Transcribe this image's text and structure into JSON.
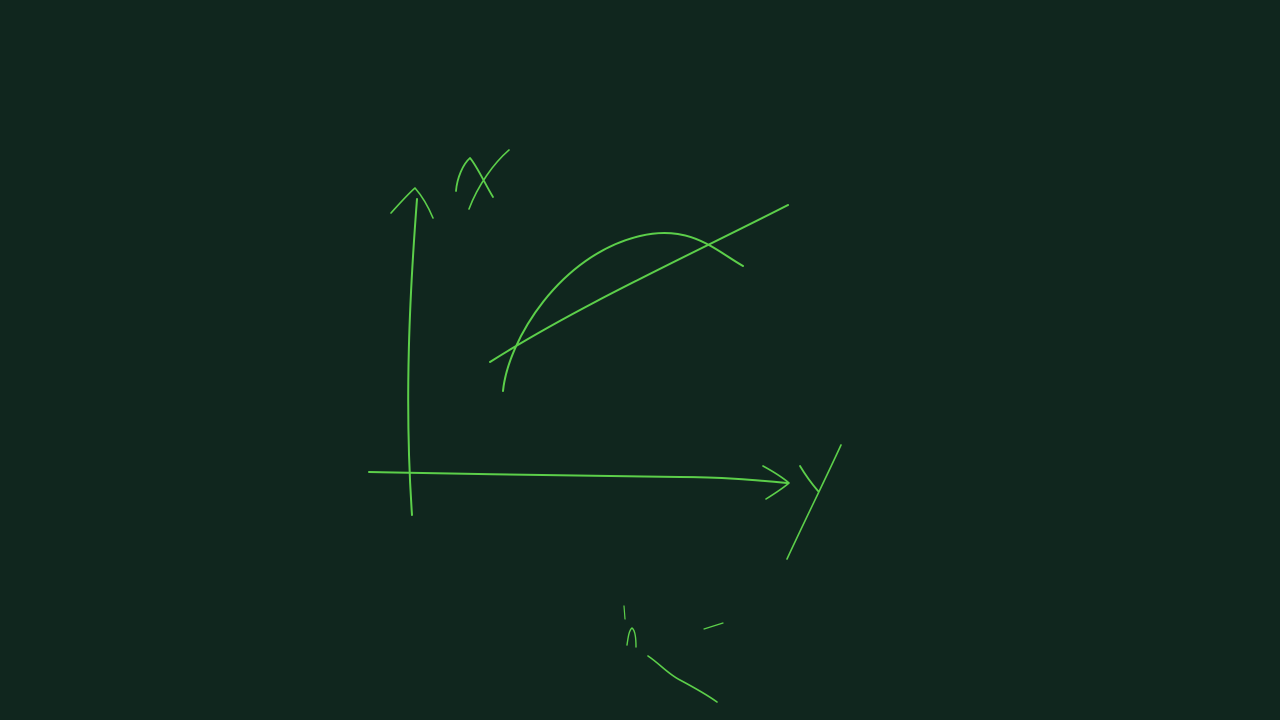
{
  "canvas": {
    "background": "#10261e",
    "ink_color": "#5ccf4a"
  },
  "sketch": {
    "vertical_axis_label": "x",
    "horizontal_axis_label": "y",
    "bottom_mark": "n"
  }
}
